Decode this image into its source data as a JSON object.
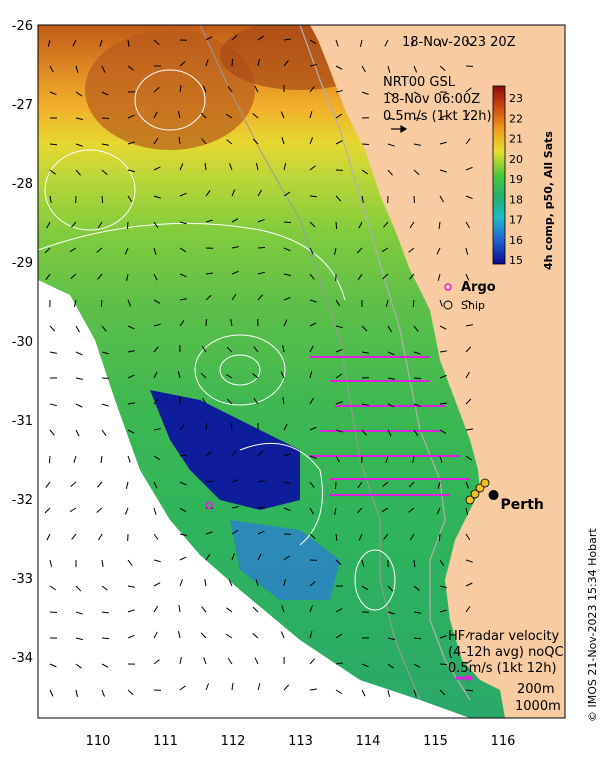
{
  "map": {
    "date_label": "18-Nov-2023 20Z",
    "current_model": {
      "line1": "NRT00 GSL",
      "line2": "18-Nov 06:00Z",
      "line3": "0.5m/s (1kt 12h)"
    },
    "hf_radar": {
      "line1": "HF radar velocity",
      "line2": "(4-12h avg) noQC",
      "line3": "0.5m/s (1kt 12h)"
    },
    "depth_contours": {
      "a": "200m",
      "b": "1000m"
    },
    "legend": {
      "argo_label": "Argo",
      "ship_label": "Ship"
    },
    "city": {
      "name": "Perth",
      "lon": 115.86,
      "lat": -31.95
    },
    "argo_float": {
      "lon": 111.65,
      "lat": -32.08
    },
    "colorbar": {
      "title": "4h comp, p50, All Sats",
      "ticks": [
        "23",
        "22",
        "21",
        "20",
        "19",
        "18",
        "17",
        "16",
        "15"
      ]
    },
    "credit": "© IMOS 21-Nov-2023 15:34 Hobart",
    "colors": {
      "land": "#f8cba0",
      "argo": "#e020e0",
      "hf_arrow": "#e020e0"
    },
    "x_axis": {
      "ticks": [
        "110",
        "111",
        "112",
        "113",
        "114",
        "115",
        "116"
      ]
    },
    "y_axis": {
      "ticks": [
        "-26",
        "-27",
        "-28",
        "-29",
        "-30",
        "-31",
        "-32",
        "-33",
        "-34"
      ]
    }
  }
}
